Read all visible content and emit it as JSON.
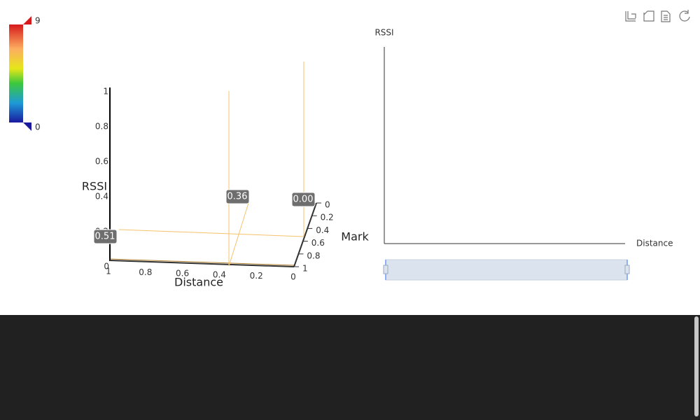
{
  "visual_map": {
    "max": "9",
    "min": "0"
  },
  "chart3d": {
    "x_axis": {
      "name": "Distance",
      "ticks": [
        "1",
        "0.8",
        "0.6",
        "0.4",
        "0.2",
        "0"
      ]
    },
    "y_axis": {
      "name": "Mark",
      "ticks": [
        "0",
        "0.2",
        "0.4",
        "0.6",
        "0.8",
        "1"
      ]
    },
    "z_axis": {
      "name": "RSSI",
      "ticks": [
        "0",
        "0.2",
        "0.4",
        "0.6",
        "0.8",
        "1"
      ]
    },
    "labels": [
      "0.51",
      "0.36",
      "0.00"
    ]
  },
  "chart2d": {
    "y_axis_name": "RSSI",
    "x_axis_name": "Distance"
  }
}
